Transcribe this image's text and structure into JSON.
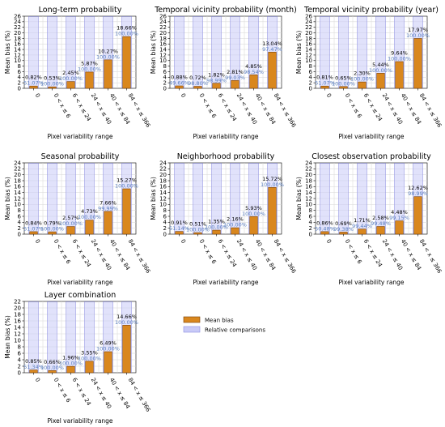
{
  "colors": {
    "mean_bias": "#d9871e",
    "mean_bias_edge": "#7a3f06",
    "relative": "#c9caf7",
    "relative_edge": "#8a8ce0",
    "relative_label": "#5a7fc0",
    "grid": "#d6d6d6"
  },
  "legend": {
    "mean_bias": "Mean bias",
    "relative": "Relative comparisons",
    "placement": "right of bottom-left panel"
  },
  "chart_data": [
    {
      "type": "bar",
      "title": "Long-term probability",
      "xlabel": "Pixel variability range",
      "ylabel": "Mean bias (%)",
      "ylim": [
        0,
        26
      ],
      "yticks": [
        "0",
        "2",
        "4",
        "6",
        "8",
        "10",
        "12",
        "14",
        "16",
        "18",
        "20",
        "22",
        "24",
        "26"
      ],
      "categories": [
        "0",
        "0 < x ≤ 6",
        "6 < x ≤ 24",
        "24 < x ≤ 40",
        "40 < x ≤ 84",
        "84 < x ≤ 366"
      ],
      "series": [
        {
          "name": "Mean bias",
          "values": [
            0.82,
            0.53,
            2.45,
            5.87,
            10.27,
            18.66
          ],
          "labels": [
            "0.82%",
            "0.53%",
            "2.45%",
            "5.87%",
            "10.27%",
            "18.66%"
          ]
        },
        {
          "name": "Relative comparisons",
          "labels": [
            "51.07%",
            "100.00%",
            "100.00%",
            "100.00%",
            "100.00%",
            "100.00%"
          ]
        }
      ]
    },
    {
      "type": "bar",
      "title": "Temporal vicinity probability (month)",
      "xlabel": "Pixel variability range",
      "ylabel": "Mean bias (%)",
      "ylim": [
        0,
        26
      ],
      "yticks": [
        "0",
        "2",
        "4",
        "6",
        "8",
        "10",
        "12",
        "14",
        "16",
        "18",
        "20",
        "22",
        "24",
        "26"
      ],
      "categories": [
        "0",
        "0 < x ≤ 6",
        "6 < x ≤ 24",
        "24 < x ≤ 40",
        "40 < x ≤ 84",
        "84 < x ≤ 366"
      ],
      "series": [
        {
          "name": "Mean bias",
          "values": [
            0.88,
            0.72,
            1.82,
            2.81,
            4.85,
            13.04
          ],
          "labels": [
            "0.88%",
            "0.72%",
            "1.82%",
            "2.81%",
            "4.85%",
            "13.04%"
          ]
        },
        {
          "name": "Relative comparisons",
          "labels": [
            "49.66%",
            "98.80%",
            "98.99%",
            "99.03%",
            "98.54%",
            "97.47%"
          ]
        }
      ]
    },
    {
      "type": "bar",
      "title": "Temporal vicinity probability (year)",
      "xlabel": "Pixel variability range",
      "ylabel": "Mean bias (%)",
      "ylim": [
        0,
        26
      ],
      "yticks": [
        "0",
        "2",
        "4",
        "6",
        "8",
        "10",
        "12",
        "14",
        "16",
        "18",
        "20",
        "22",
        "24",
        "26"
      ],
      "categories": [
        "0",
        "0 < x ≤ 6",
        "6 < x ≤ 24",
        "24 < x ≤ 40",
        "40 < x ≤ 84",
        "84 < x ≤ 366"
      ],
      "series": [
        {
          "name": "Mean bias",
          "values": [
            0.81,
            0.65,
            2.3,
            5.44,
            9.64,
            17.97
          ],
          "labels": [
            "0.81%",
            "0.65%",
            "2.30%",
            "5.44%",
            "9.64%",
            "17.97%"
          ]
        },
        {
          "name": "Relative comparisons",
          "labels": [
            "51.07%",
            "100.00%",
            "100.00%",
            "100.00%",
            "100.00%",
            "100.00%"
          ]
        }
      ]
    },
    {
      "type": "bar",
      "title": "Seasonal probability",
      "xlabel": "Pixel variability range",
      "ylabel": "Mean bias (%)",
      "ylim": [
        0,
        24
      ],
      "yticks": [
        "0",
        "2",
        "4",
        "6",
        "8",
        "10",
        "12",
        "14",
        "16",
        "18",
        "20",
        "22",
        "24"
      ],
      "categories": [
        "0",
        "0 < x ≤ 6",
        "6 < x ≤ 24",
        "24 < x ≤ 40",
        "40 < x ≤ 84",
        "84 < x ≤ 366"
      ],
      "series": [
        {
          "name": "Mean bias",
          "values": [
            0.84,
            0.79,
            2.57,
            4.73,
            7.66,
            15.27
          ],
          "labels": [
            "0.84%",
            "0.79%",
            "2.57%",
            "4.73%",
            "7.66%",
            "15.27%"
          ]
        },
        {
          "name": "Relative comparisons",
          "labels": [
            "51.07%",
            "100.00%",
            "100.00%",
            "100.00%",
            "99.99%",
            "100.00%"
          ]
        }
      ]
    },
    {
      "type": "bar",
      "title": "Neighborhood probability",
      "xlabel": "Pixel variability range",
      "ylabel": "Mean bias (%)",
      "ylim": [
        0,
        24
      ],
      "yticks": [
        "0",
        "2",
        "4",
        "6",
        "8",
        "10",
        "12",
        "14",
        "16",
        "18",
        "20",
        "22",
        "24"
      ],
      "categories": [
        "0",
        "0 < x ≤ 6",
        "6 < x ≤ 24",
        "24 < x ≤ 40",
        "40 < x ≤ 84",
        "84 < x ≤ 366"
      ],
      "series": [
        {
          "name": "Mean bias",
          "values": [
            0.91,
            0.51,
            1.35,
            2.16,
            5.93,
            15.72
          ],
          "labels": [
            "0.91%",
            "0.51%",
            "1.35%",
            "2.16%",
            "5.93%",
            "15.72%"
          ]
        },
        {
          "name": "Relative comparisons",
          "labels": [
            "51.14%",
            "100.00%",
            "100.00%",
            "100.00%",
            "100.00%",
            "100.00%"
          ]
        }
      ]
    },
    {
      "type": "bar",
      "title": "Closest observation probability",
      "xlabel": "Pixel variability range",
      "ylabel": "Mean bias (%)",
      "ylim": [
        0,
        24
      ],
      "yticks": [
        "0",
        "2",
        "4",
        "6",
        "8",
        "10",
        "12",
        "14",
        "16",
        "18",
        "20",
        "22",
        "24"
      ],
      "categories": [
        "0",
        "0 < x ≤ 6",
        "6 < x ≤ 24",
        "24 < x ≤ 40",
        "40 < x ≤ 84",
        "84 < x ≤ 366"
      ],
      "series": [
        {
          "name": "Mean bias",
          "values": [
            0.86,
            0.69,
            1.71,
            2.58,
            4.48,
            12.62
          ],
          "labels": [
            "0.86%",
            "0.69%",
            "1.71%",
            "2.58%",
            "4.48%",
            "12.62%"
          ]
        },
        {
          "name": "Relative comparisons",
          "labels": [
            "50.48%",
            "99.38%",
            "99.44%",
            "99.48%",
            "99.15%",
            "98.99%"
          ]
        }
      ]
    },
    {
      "type": "bar",
      "title": "Layer combination",
      "xlabel": "Pixel variability range",
      "ylabel": "Mean bias (%)",
      "ylim": [
        0,
        22
      ],
      "yticks": [
        "0",
        "2",
        "4",
        "6",
        "8",
        "10",
        "12",
        "14",
        "16",
        "18",
        "20",
        "22"
      ],
      "categories": [
        "0",
        "0 < x ≤ 6",
        "6 < x ≤ 24",
        "24 < x ≤ 40",
        "40 < x ≤ 84",
        "84 < x ≤ 366"
      ],
      "series": [
        {
          "name": "Mean bias",
          "values": [
            0.85,
            0.66,
            1.96,
            3.55,
            6.49,
            14.66
          ],
          "labels": [
            "0.85%",
            "0.66%",
            "1.96%",
            "3.55%",
            "6.49%",
            "14.66%"
          ]
        },
        {
          "name": "Relative comparisons",
          "labels": [
            "51.34%",
            "100.00%",
            "100.00%",
            "100.00%",
            "100.00%",
            "100.00%"
          ]
        }
      ]
    }
  ]
}
